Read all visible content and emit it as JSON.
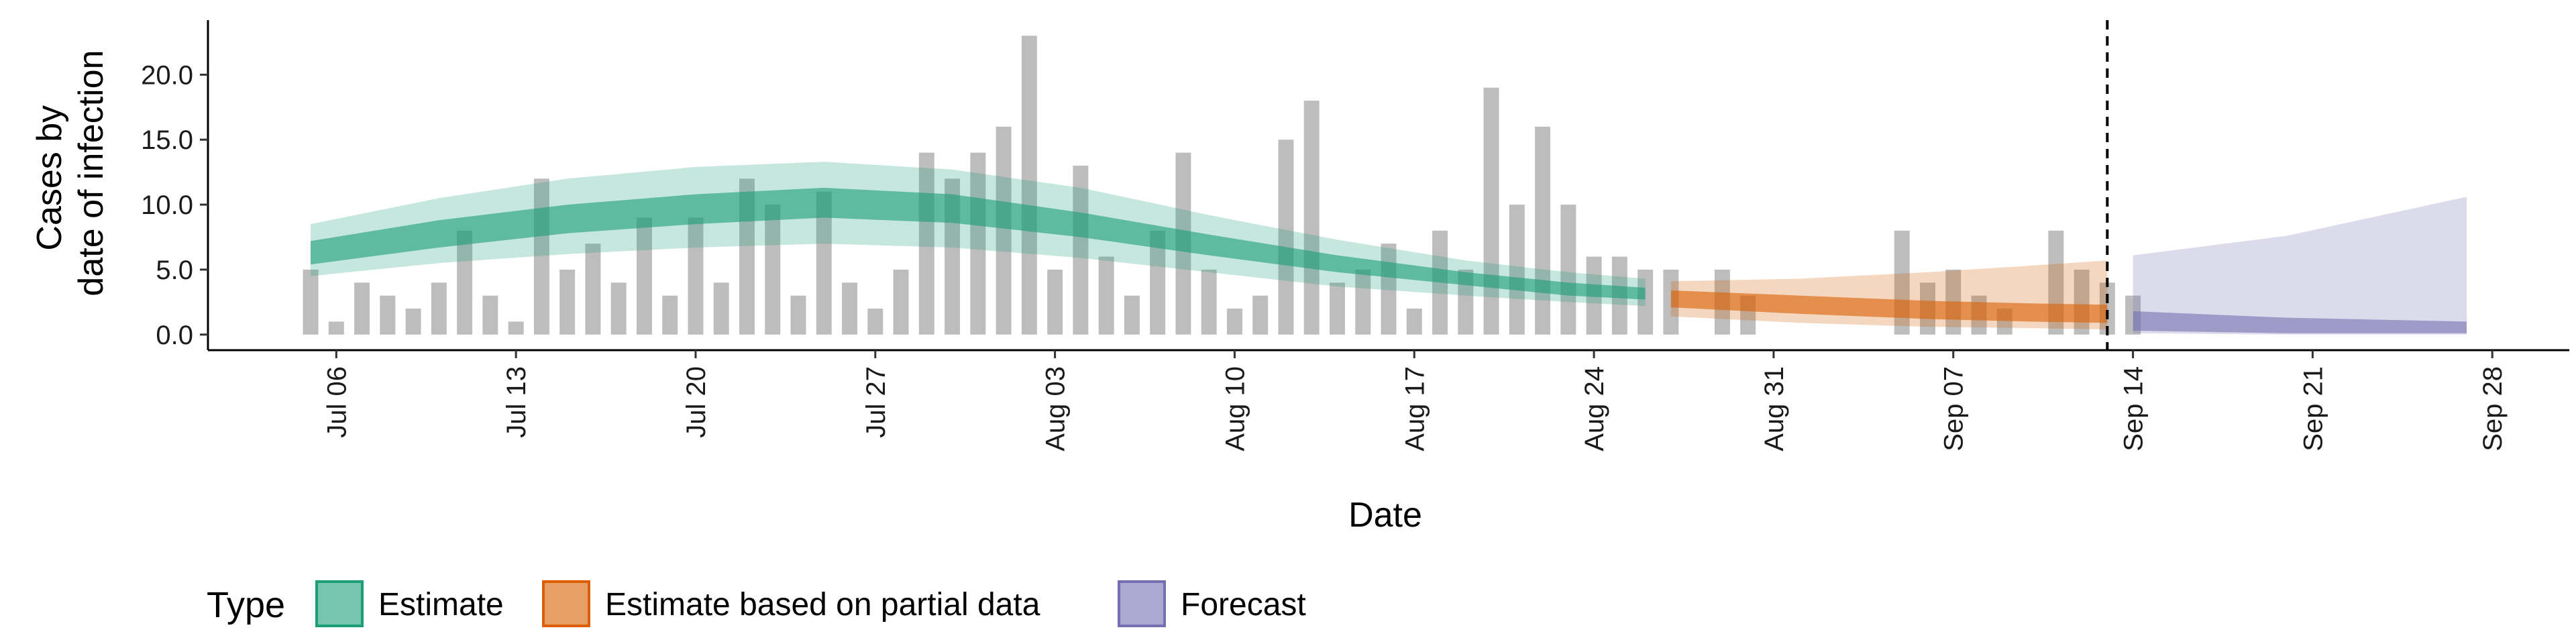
{
  "chart_data": {
    "type": "area",
    "xlabel": "Date",
    "ylabel": [
      "Cases by",
      "date of infection"
    ],
    "ylim": [
      -1.2,
      24.2
    ],
    "xlim": [
      "2020-07-01",
      "2020-10-01"
    ],
    "yticks": [
      "0.0",
      "5.0",
      "10.0",
      "15.0",
      "20.0"
    ],
    "xticks": [
      {
        "date": "2020-07-06",
        "label": "Jul 06"
      },
      {
        "date": "2020-07-13",
        "label": "Jul 13"
      },
      {
        "date": "2020-07-20",
        "label": "Jul 20"
      },
      {
        "date": "2020-07-27",
        "label": "Jul 27"
      },
      {
        "date": "2020-08-03",
        "label": "Aug 03"
      },
      {
        "date": "2020-08-10",
        "label": "Aug 10"
      },
      {
        "date": "2020-08-17",
        "label": "Aug 17"
      },
      {
        "date": "2020-08-24",
        "label": "Aug 24"
      },
      {
        "date": "2020-08-31",
        "label": "Aug 31"
      },
      {
        "date": "2020-09-07",
        "label": "Sep 07"
      },
      {
        "date": "2020-09-14",
        "label": "Sep 14"
      },
      {
        "date": "2020-09-21",
        "label": "Sep 21"
      },
      {
        "date": "2020-09-28",
        "label": "Sep 28"
      }
    ],
    "observed_cases": {
      "start_date": "2020-07-05",
      "values": [
        5,
        1,
        4,
        3,
        2,
        4,
        8,
        3,
        1,
        12,
        5,
        7,
        4,
        9,
        3,
        9,
        4,
        12,
        10,
        3,
        11,
        4,
        2,
        5,
        14,
        12,
        14,
        16,
        23,
        5,
        13,
        6,
        3,
        8,
        14,
        5,
        2,
        3,
        15,
        18,
        4,
        5,
        7,
        2,
        8,
        5,
        19,
        10,
        16,
        10,
        6,
        6,
        5,
        5,
        0,
        5,
        3,
        0,
        0,
        0,
        0,
        0,
        8,
        4,
        5,
        3,
        2,
        0,
        8,
        5,
        4,
        3
      ]
    },
    "vline_date": "2020-09-13",
    "colors": {
      "estimate": "#1b9e77",
      "partial": "#d95f02",
      "forecast": "#7570b3",
      "bars": "#bdbdbd"
    },
    "series": [
      {
        "name": "Estimate",
        "legend_label": "Estimate",
        "color": "#1b9e77",
        "x": [
          "2020-07-05",
          "2020-07-10",
          "2020-07-15",
          "2020-07-20",
          "2020-07-25",
          "2020-07-30",
          "2020-08-04",
          "2020-08-09",
          "2020-08-14",
          "2020-08-19",
          "2020-08-23",
          "2020-08-26"
        ],
        "outer_low": [
          4.5,
          5.5,
          6.2,
          6.7,
          7.0,
          6.7,
          5.9,
          4.8,
          3.7,
          3.0,
          2.5,
          2.2
        ],
        "outer_high": [
          8.5,
          10.5,
          12.0,
          12.9,
          13.3,
          12.7,
          11.3,
          9.2,
          7.3,
          5.7,
          4.8,
          4.3
        ],
        "inner_low": [
          5.4,
          6.7,
          7.8,
          8.5,
          9.0,
          8.6,
          7.5,
          6.1,
          4.8,
          3.8,
          3.0,
          2.7
        ],
        "inner_high": [
          7.2,
          8.8,
          10.0,
          10.8,
          11.3,
          10.8,
          9.4,
          7.7,
          6.1,
          4.8,
          4.0,
          3.6
        ]
      },
      {
        "name": "Estimate based on partial data",
        "legend_label": "Estimate based on partial data",
        "color": "#d95f02",
        "x": [
          "2020-08-27",
          "2020-09-01",
          "2020-09-06",
          "2020-09-10",
          "2020-09-13"
        ],
        "outer_low": [
          1.4,
          0.9,
          0.6,
          0.5,
          0.4
        ],
        "outer_high": [
          4.1,
          4.3,
          4.8,
          5.3,
          5.7
        ],
        "inner_low": [
          2.1,
          1.6,
          1.2,
          1.0,
          0.9
        ],
        "inner_high": [
          3.4,
          3.0,
          2.6,
          2.4,
          2.3
        ]
      },
      {
        "name": "Forecast",
        "legend_label": "Forecast",
        "color": "#7570b3",
        "x": [
          "2020-09-14",
          "2020-09-20",
          "2020-09-27"
        ],
        "outer_low": [
          0.1,
          0.0,
          0.0
        ],
        "outer_high": [
          6.1,
          7.6,
          10.6
        ],
        "inner_low": [
          0.3,
          0.1,
          0.1
        ],
        "inner_high": [
          1.8,
          1.3,
          1.0
        ]
      }
    ],
    "legend": {
      "title": "Type",
      "position": "bottom",
      "items": [
        "Estimate",
        "Estimate based on partial data",
        "Forecast"
      ]
    },
    "grid": false
  }
}
